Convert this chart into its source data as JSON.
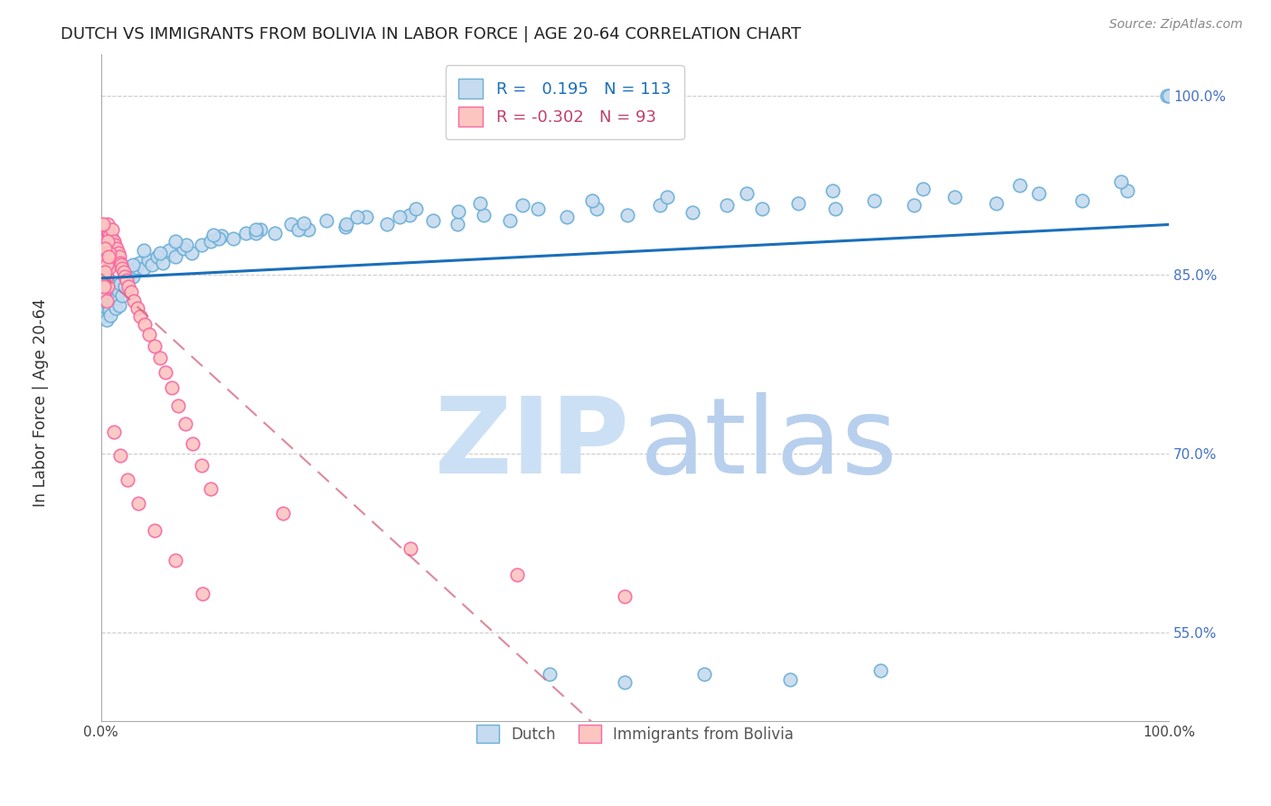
{
  "title": "DUTCH VS IMMIGRANTS FROM BOLIVIA IN LABOR FORCE | AGE 20-64 CORRELATION CHART",
  "source": "Source: ZipAtlas.com",
  "ylabel": "In Labor Force | Age 20-64",
  "legend_dutch": "Dutch",
  "legend_bolivia": "Immigrants from Bolivia",
  "R_dutch": 0.195,
  "N_dutch": 113,
  "R_bolivia": -0.302,
  "N_bolivia": 93,
  "blue_color": "#6baed6",
  "blue_fill": "#c6dbef",
  "pink_color": "#f768a1",
  "pink_fill": "#fcc5c0",
  "trend_blue": "#1a6fba",
  "trend_pink": "#d4607a",
  "watermark_zip_color": "#cce0f5",
  "watermark_atlas_color": "#b8d0ed",
  "ytick_values": [
    0.55,
    0.7,
    0.85,
    1.0
  ],
  "ytick_labels": [
    "55.0%",
    "70.0%",
    "85.0%",
    "100.0%"
  ],
  "xlim": [
    0.0,
    1.0
  ],
  "ylim": [
    0.475,
    1.035
  ],
  "dutch_x": [
    0.001,
    0.002,
    0.002,
    0.003,
    0.003,
    0.003,
    0.004,
    0.004,
    0.004,
    0.005,
    0.005,
    0.005,
    0.006,
    0.006,
    0.007,
    0.007,
    0.008,
    0.008,
    0.009,
    0.009,
    0.01,
    0.01,
    0.011,
    0.012,
    0.013,
    0.014,
    0.015,
    0.016,
    0.017,
    0.018,
    0.02,
    0.022,
    0.025,
    0.028,
    0.03,
    0.033,
    0.036,
    0.04,
    0.044,
    0.048,
    0.053,
    0.058,
    0.064,
    0.07,
    0.077,
    0.085,
    0.094,
    0.103,
    0.113,
    0.124,
    0.136,
    0.149,
    0.163,
    0.178,
    0.194,
    0.211,
    0.229,
    0.248,
    0.268,
    0.289,
    0.311,
    0.334,
    0.358,
    0.383,
    0.409,
    0.436,
    0.464,
    0.493,
    0.523,
    0.554,
    0.586,
    0.619,
    0.653,
    0.688,
    0.724,
    0.761,
    0.799,
    0.838,
    0.878,
    0.919,
    0.961,
    0.03,
    0.055,
    0.08,
    0.11,
    0.145,
    0.185,
    0.23,
    0.28,
    0.335,
    0.395,
    0.46,
    0.53,
    0.605,
    0.685,
    0.77,
    0.86,
    0.955,
    0.998,
    0.04,
    0.07,
    0.105,
    0.145,
    0.19,
    0.24,
    0.295,
    0.355,
    0.42,
    0.49,
    0.565,
    0.645,
    0.73,
    1.0
  ],
  "dutch_y": [
    0.82,
    0.83,
    0.825,
    0.835,
    0.815,
    0.84,
    0.828,
    0.818,
    0.832,
    0.822,
    0.838,
    0.812,
    0.826,
    0.836,
    0.824,
    0.842,
    0.83,
    0.82,
    0.834,
    0.816,
    0.828,
    0.84,
    0.832,
    0.826,
    0.838,
    0.822,
    0.83,
    0.836,
    0.824,
    0.842,
    0.832,
    0.84,
    0.845,
    0.852,
    0.848,
    0.856,
    0.86,
    0.855,
    0.862,
    0.858,
    0.865,
    0.86,
    0.87,
    0.865,
    0.872,
    0.868,
    0.875,
    0.878,
    0.882,
    0.88,
    0.885,
    0.888,
    0.885,
    0.892,
    0.888,
    0.895,
    0.89,
    0.898,
    0.892,
    0.9,
    0.895,
    0.892,
    0.9,
    0.895,
    0.905,
    0.898,
    0.905,
    0.9,
    0.908,
    0.902,
    0.908,
    0.905,
    0.91,
    0.905,
    0.912,
    0.908,
    0.915,
    0.91,
    0.918,
    0.912,
    0.92,
    0.858,
    0.868,
    0.875,
    0.88,
    0.885,
    0.888,
    0.892,
    0.898,
    0.903,
    0.908,
    0.912,
    0.915,
    0.918,
    0.92,
    0.922,
    0.925,
    0.928,
    1.0,
    0.87,
    0.878,
    0.883,
    0.888,
    0.893,
    0.898,
    0.905,
    0.91,
    0.515,
    0.508,
    0.515,
    0.51,
    0.518,
    1.0
  ],
  "bolivia_x": [
    0.001,
    0.001,
    0.001,
    0.002,
    0.002,
    0.002,
    0.002,
    0.003,
    0.003,
    0.003,
    0.003,
    0.003,
    0.004,
    0.004,
    0.004,
    0.004,
    0.005,
    0.005,
    0.005,
    0.005,
    0.006,
    0.006,
    0.006,
    0.007,
    0.007,
    0.007,
    0.008,
    0.008,
    0.008,
    0.009,
    0.009,
    0.01,
    0.01,
    0.01,
    0.011,
    0.011,
    0.012,
    0.012,
    0.013,
    0.013,
    0.014,
    0.015,
    0.015,
    0.016,
    0.017,
    0.018,
    0.019,
    0.02,
    0.021,
    0.022,
    0.024,
    0.026,
    0.028,
    0.031,
    0.034,
    0.037,
    0.041,
    0.045,
    0.05,
    0.055,
    0.06,
    0.066,
    0.072,
    0.079,
    0.086,
    0.094,
    0.103,
    0.003,
    0.004,
    0.005,
    0.006,
    0.007,
    0.008,
    0.003,
    0.004,
    0.005,
    0.006,
    0.007,
    0.002,
    0.003,
    0.004,
    0.005,
    0.17,
    0.29,
    0.39,
    0.49,
    0.012,
    0.018,
    0.025,
    0.035,
    0.05,
    0.07,
    0.095
  ],
  "bolivia_y": [
    0.87,
    0.88,
    0.862,
    0.875,
    0.865,
    0.882,
    0.858,
    0.878,
    0.868,
    0.885,
    0.855,
    0.872,
    0.876,
    0.865,
    0.888,
    0.852,
    0.88,
    0.87,
    0.888,
    0.858,
    0.875,
    0.865,
    0.892,
    0.878,
    0.868,
    0.885,
    0.872,
    0.862,
    0.882,
    0.875,
    0.865,
    0.88,
    0.87,
    0.888,
    0.875,
    0.865,
    0.878,
    0.868,
    0.875,
    0.865,
    0.87,
    0.872,
    0.862,
    0.868,
    0.865,
    0.86,
    0.858,
    0.855,
    0.852,
    0.848,
    0.845,
    0.84,
    0.835,
    0.828,
    0.822,
    0.815,
    0.808,
    0.8,
    0.79,
    0.78,
    0.768,
    0.755,
    0.74,
    0.725,
    0.708,
    0.69,
    0.67,
    0.835,
    0.862,
    0.848,
    0.878,
    0.855,
    0.868,
    0.848,
    0.872,
    0.858,
    0.84,
    0.865,
    0.892,
    0.84,
    0.852,
    0.828,
    0.65,
    0.62,
    0.598,
    0.58,
    0.718,
    0.698,
    0.678,
    0.658,
    0.635,
    0.61,
    0.582
  ]
}
